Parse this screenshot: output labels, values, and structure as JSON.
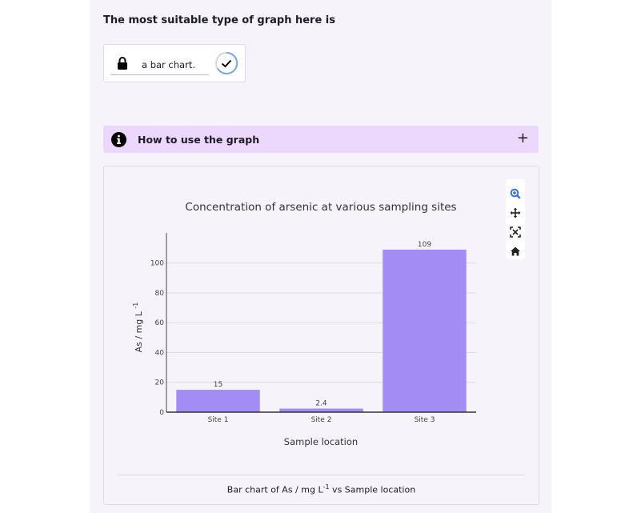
{
  "question": {
    "text": "The most suitable type of graph here is"
  },
  "answer": {
    "text": "a bar chart.",
    "icon": "lock-icon",
    "status_icon": "check-circle-icon"
  },
  "accordion": {
    "title": "How to use the graph",
    "icon": "info-icon",
    "toggle": "+"
  },
  "toolbar": {
    "items": [
      "zoom-icon",
      "pan-icon",
      "autoscale-icon",
      "home-icon"
    ]
  },
  "caption": {
    "prefix": "Bar chart of As / mg L",
    "sup": "-1",
    "suffix": " vs Sample location"
  },
  "colors": {
    "bar": "#a38cf4",
    "accordion": "#ecd8fc",
    "panel": "#f6f3fa",
    "accent": "#3a6fd8"
  },
  "chart_data": {
    "type": "bar",
    "title": "Concentration of arsenic at various sampling sites",
    "xlabel": "Sample location",
    "ylabel_text": "As / mg L",
    "ylabel_sup": "-1",
    "categories": [
      "Site 1",
      "Site 2",
      "Site 3"
    ],
    "values": [
      15,
      2.4,
      109
    ],
    "value_labels": [
      "15",
      "2.4",
      "109"
    ],
    "ylim": [
      0,
      117
    ],
    "yticks": [
      0,
      20,
      40,
      60,
      80,
      100
    ],
    "grid": true
  }
}
